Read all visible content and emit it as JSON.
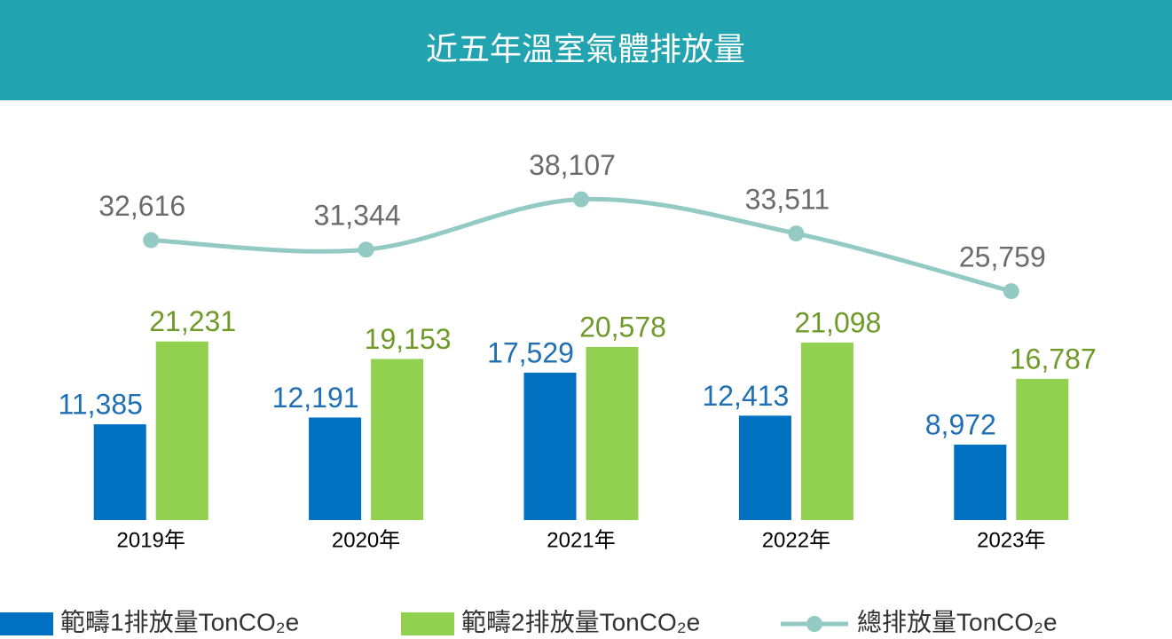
{
  "chart_data": {
    "type": "bar",
    "title": "近五年溫室氣體排放量",
    "categories": [
      "2019年",
      "2020年",
      "2021年",
      "2022年",
      "2023年"
    ],
    "series": [
      {
        "name": "範疇1排放量TonCO₂e",
        "color": "#0070c0",
        "label_color": "#1f6fb5",
        "values": [
          11385,
          12191,
          17529,
          12413,
          8972
        ],
        "value_labels": [
          "11,385",
          "12,191",
          "17,529",
          "12,413",
          "8,972"
        ]
      },
      {
        "name": "範疇2排放量TonCO₂e",
        "color": "#92d050",
        "label_color": "#6e9a2a",
        "values": [
          21231,
          19153,
          20578,
          21098,
          16787
        ],
        "value_labels": [
          "21,231",
          "19,153",
          "20,578",
          "21,098",
          "16,787"
        ]
      },
      {
        "name": "總排放量TonCO₂e",
        "type": "line",
        "axis": "y2",
        "color": "#93cbc4",
        "label_color": "#6b6b6b",
        "values": [
          32616,
          31344,
          38107,
          33511,
          25759
        ],
        "value_labels": [
          "32,616",
          "31,344",
          "38,107",
          "33,511",
          "25,759"
        ]
      }
    ],
    "ylim": [
      0,
      46000
    ],
    "y2lim": [
      -5000,
      47000
    ],
    "grid": false,
    "legend": "bottom"
  }
}
